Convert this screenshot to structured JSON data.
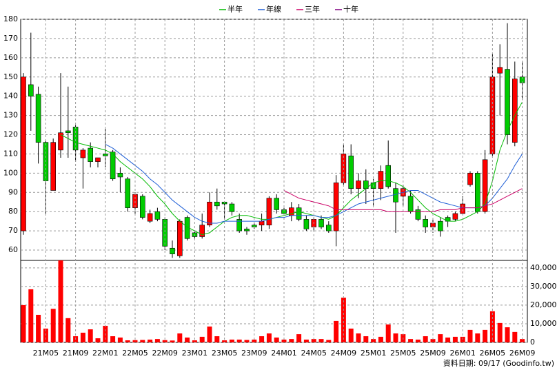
{
  "chart_data": [
    {
      "type": "candlestick",
      "open": [
        70,
        146,
        141,
        116,
        91,
        112,
        122,
        124,
        108,
        113,
        106,
        110,
        111,
        100,
        97,
        82,
        88,
        75,
        80,
        76,
        61,
        57,
        77,
        69,
        67,
        73,
        85,
        85,
        84,
        76,
        71,
        73,
        73,
        73,
        87,
        81,
        78,
        82,
        76,
        72,
        76,
        73,
        70,
        95,
        109,
        92,
        96,
        95,
        92,
        104,
        92,
        88,
        88,
        81,
        76,
        72,
        75,
        77,
        76,
        79,
        94,
        100,
        80,
        110,
        152,
        154,
        116,
        150
      ],
      "high": [
        152,
        173,
        145,
        117,
        118,
        152,
        145,
        125,
        113,
        116,
        108,
        123,
        112,
        103,
        98,
        90,
        89,
        81,
        82,
        77,
        65,
        76,
        78,
        70,
        79,
        90,
        92,
        85,
        85,
        79,
        72,
        74,
        79,
        88,
        89,
        82,
        85,
        84,
        78,
        77,
        78,
        75,
        99,
        115,
        115,
        100,
        102,
        97,
        104,
        117,
        95,
        94,
        91,
        83,
        78,
        76,
        77,
        78,
        80,
        88,
        101,
        101,
        112,
        162,
        167,
        178,
        158,
        158
      ],
      "low": [
        68,
        122,
        105,
        79,
        91,
        108,
        108,
        106,
        92,
        103,
        103,
        103,
        96,
        90,
        80,
        79,
        76,
        74,
        75,
        60,
        56,
        56,
        65,
        66,
        66,
        72,
        81,
        76,
        78,
        69,
        68,
        71,
        70,
        71,
        79,
        78,
        75,
        75,
        70,
        70,
        71,
        69,
        62,
        94,
        89,
        87,
        84,
        83,
        86,
        92,
        69,
        83,
        79,
        75,
        69,
        69,
        67,
        72,
        75,
        79,
        93,
        79,
        79,
        109,
        130,
        115,
        114,
        138
      ],
      "close": [
        150,
        140,
        116,
        96,
        116,
        121,
        121,
        112,
        112,
        106,
        108,
        109,
        97,
        98,
        82,
        89,
        77,
        79,
        76,
        62,
        58,
        75,
        66,
        67,
        73,
        85,
        83,
        84,
        80,
        70,
        70,
        72,
        75,
        87,
        81,
        79,
        82,
        76,
        71,
        76,
        72,
        70,
        95,
        110,
        92,
        96,
        92,
        92,
        101,
        93,
        85,
        92,
        80,
        76,
        72,
        74,
        70,
        75,
        79,
        84,
        100,
        80,
        107,
        150,
        155,
        120,
        149,
        147
      ],
      "up_color": "#ff0000",
      "down_color": "#00cc00",
      "series": [
        {
          "name": "半年",
          "color": "#00bb00",
          "values": [
            null,
            null,
            null,
            null,
            null,
            120,
            118,
            116,
            115,
            114,
            113,
            112,
            110,
            106,
            103,
            100,
            97,
            93,
            88,
            84,
            79,
            75,
            72,
            70,
            68,
            69,
            72,
            75,
            77,
            78,
            78,
            77,
            76,
            76,
            77,
            78,
            79,
            80,
            79,
            78,
            77,
            76,
            78,
            82,
            86,
            89,
            92,
            95,
            96,
            96,
            95,
            93,
            90,
            86,
            82,
            79,
            77,
            75,
            75,
            76,
            78,
            80,
            84,
            96,
            112,
            122,
            130,
            137
          ]
        },
        {
          "name": "年線",
          "color": "#1f5fd6",
          "values": [
            null,
            null,
            null,
            null,
            null,
            null,
            null,
            null,
            null,
            null,
            null,
            115,
            113,
            110,
            107,
            104,
            101,
            97,
            94,
            90,
            86,
            83,
            80,
            77,
            75,
            74,
            74,
            75,
            75,
            75,
            75,
            75,
            75,
            76,
            77,
            77,
            78,
            78,
            78,
            78,
            77,
            77,
            78,
            80,
            82,
            84,
            85,
            86,
            87,
            88,
            89,
            90,
            91,
            91,
            89,
            87,
            85,
            84,
            83,
            82,
            82,
            82,
            83,
            87,
            92,
            97,
            104,
            110
          ]
        },
        {
          "name": "三年",
          "color": "#cc0066",
          "values": [
            null,
            null,
            null,
            null,
            null,
            null,
            null,
            null,
            null,
            null,
            null,
            null,
            null,
            null,
            null,
            null,
            null,
            null,
            null,
            null,
            null,
            null,
            null,
            null,
            null,
            null,
            null,
            null,
            null,
            null,
            null,
            null,
            null,
            null,
            null,
            91,
            89,
            87,
            86,
            85,
            84,
            83,
            81,
            81,
            81,
            81,
            81,
            81,
            81,
            80,
            80,
            80,
            80,
            80,
            80,
            80,
            81,
            81,
            81,
            82,
            82,
            82,
            83,
            84,
            86,
            88,
            90,
            92
          ]
        },
        {
          "name": "十年",
          "color": "#800080",
          "values": [
            null,
            null,
            null,
            null,
            null,
            null,
            null,
            null,
            null,
            null,
            null,
            null,
            null,
            null,
            null,
            null,
            null,
            null,
            null,
            null,
            null,
            null,
            null,
            null,
            null,
            null,
            null,
            null,
            null,
            null,
            null,
            null,
            null,
            null,
            null,
            null,
            null,
            null,
            null,
            null,
            null,
            null,
            null,
            null,
            null,
            null,
            null,
            null,
            null,
            null,
            null,
            null,
            null,
            null,
            null,
            null,
            null,
            null,
            null,
            null,
            null,
            null,
            null,
            null,
            null,
            null,
            null,
            null
          ]
        }
      ],
      "ylim": [
        55,
        180
      ],
      "yticks": [
        60,
        70,
        80,
        90,
        100,
        110,
        120,
        130,
        140,
        150,
        160,
        170,
        180
      ],
      "grid": true
    },
    {
      "type": "bar",
      "categories": [
        null,
        null,
        null,
        "21M05",
        null,
        null,
        null,
        "21M09",
        null,
        null,
        null,
        "22M01",
        null,
        null,
        null,
        "22M05",
        null,
        null,
        null,
        "22M09",
        null,
        null,
        null,
        "23M01",
        null,
        null,
        null,
        "23M05",
        null,
        null,
        null,
        "23M09",
        null,
        null,
        null,
        "24M01",
        null,
        null,
        null,
        "24M05",
        null,
        null,
        null,
        "24M09",
        null,
        null,
        null,
        "25M01",
        null,
        null,
        null,
        "25M05",
        null,
        null,
        null,
        "25M09",
        null,
        null,
        null,
        "26M01",
        null,
        null,
        null,
        "26M05",
        null,
        null,
        null,
        "26M09"
      ],
      "values": [
        20000,
        28500,
        14800,
        7400,
        18000,
        44000,
        13000,
        3300,
        5200,
        7000,
        2200,
        8900,
        3300,
        2600,
        1100,
        1200,
        1300,
        1500,
        1800,
        1200,
        1000,
        4800,
        2600,
        1100,
        3000,
        8500,
        3300,
        1100,
        1500,
        1500,
        1300,
        1500,
        3300,
        4800,
        2600,
        1500,
        1800,
        4400,
        1500,
        1800,
        1800,
        1300,
        11500,
        24000,
        7400,
        4800,
        3300,
        1800,
        3000,
        9600,
        4800,
        4400,
        1800,
        1500,
        3300,
        1800,
        4400,
        2600,
        3000,
        3000,
        6700,
        4800,
        6700,
        16700,
        10400,
        8100,
        5600,
        1800
      ],
      "color": "#ff0000",
      "ylim": [
        0,
        44000
      ],
      "yticks": [
        0,
        {
          "value": 10000,
          "label": "10,000"
        },
        {
          "value": 20000,
          "label": "20,000"
        },
        {
          "value": 30000,
          "label": "30,000"
        },
        {
          "value": 40000,
          "label": "40,000"
        }
      ],
      "grid": true,
      "footer": "資料日期: 09/17 (Goodinfo.tw)"
    }
  ]
}
